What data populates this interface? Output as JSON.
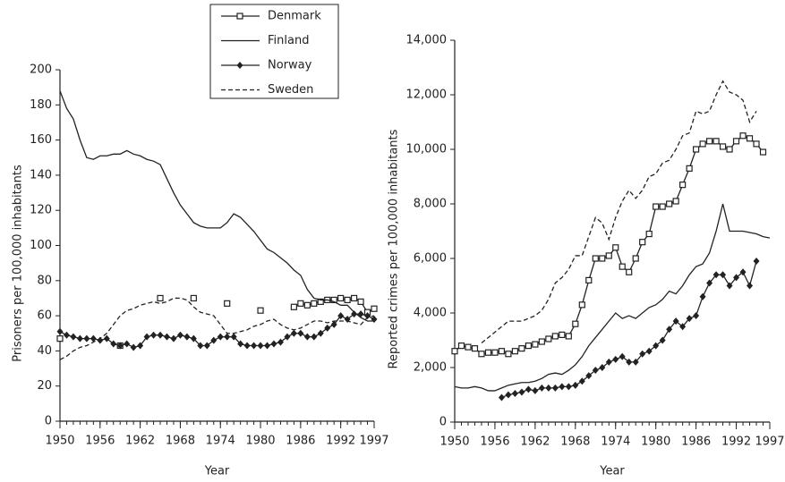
{
  "chart_data": [
    {
      "type": "line",
      "ylabel": "Prisoners per 100,000 inhabitants",
      "xlabel": "Year",
      "legend": "top",
      "x": [
        1950,
        1951,
        1952,
        1953,
        1954,
        1955,
        1956,
        1957,
        1958,
        1959,
        1960,
        1961,
        1962,
        1963,
        1964,
        1965,
        1966,
        1967,
        1968,
        1969,
        1970,
        1971,
        1972,
        1973,
        1974,
        1975,
        1976,
        1977,
        1978,
        1979,
        1980,
        1981,
        1982,
        1983,
        1984,
        1985,
        1986,
        1987,
        1988,
        1989,
        1990,
        1991,
        1992,
        1993,
        1994,
        1995,
        1996,
        1997
      ],
      "xlim": [
        1950,
        1997
      ],
      "xticks": [
        1950,
        1956,
        1962,
        1968,
        1974,
        1980,
        1986,
        1992,
        1997
      ],
      "ylim": [
        0,
        200
      ],
      "yticks": [
        0,
        20,
        40,
        60,
        80,
        100,
        120,
        140,
        160,
        180,
        200
      ],
      "series": [
        {
          "name": "Denmark",
          "color": "#222222",
          "marker": "square",
          "dash": false,
          "values": [
            47,
            null,
            null,
            null,
            null,
            null,
            null,
            null,
            null,
            43,
            null,
            null,
            null,
            null,
            null,
            70,
            null,
            null,
            null,
            null,
            70,
            null,
            null,
            null,
            null,
            67,
            null,
            null,
            null,
            null,
            63,
            null,
            null,
            null,
            null,
            65,
            67,
            66,
            67,
            68,
            69,
            69,
            70,
            69,
            70,
            68,
            62,
            64
          ]
        },
        {
          "name": "Finland",
          "color": "#222222",
          "marker": "none",
          "dash": false,
          "values": [
            188,
            178,
            172,
            160,
            150,
            149,
            151,
            151,
            152,
            152,
            154,
            152,
            151,
            149,
            148,
            146,
            138,
            130,
            123,
            118,
            113,
            111,
            110,
            110,
            110,
            113,
            118,
            116,
            112,
            108,
            103,
            98,
            96,
            93,
            90,
            86,
            83,
            75,
            70,
            69,
            69,
            68,
            66,
            66,
            62,
            59,
            57,
            57
          ]
        },
        {
          "name": "Norway",
          "color": "#222222",
          "marker": "diamond",
          "dash": false,
          "values": [
            51,
            49,
            48,
            47,
            47,
            47,
            46,
            47,
            44,
            43,
            44,
            42,
            43,
            48,
            49,
            49,
            48,
            47,
            49,
            48,
            47,
            43,
            43,
            46,
            48,
            48,
            48,
            44,
            43,
            43,
            43,
            43,
            44,
            45,
            48,
            50,
            50,
            48,
            48,
            50,
            53,
            55,
            60,
            58,
            61,
            61,
            60,
            58
          ]
        },
        {
          "name": "Sweden",
          "color": "#222222",
          "marker": "none",
          "dash": true,
          "values": [
            35,
            37,
            40,
            42,
            43,
            45,
            47,
            50,
            55,
            60,
            63,
            64,
            66,
            67,
            68,
            67,
            68,
            70,
            70,
            69,
            65,
            62,
            61,
            60,
            55,
            50,
            50,
            51,
            52,
            54,
            55,
            57,
            58,
            55,
            53,
            52,
            53,
            55,
            57,
            57,
            56,
            57,
            57,
            57,
            56,
            55,
            59,
            60
          ]
        }
      ]
    },
    {
      "type": "line",
      "ylabel": "Reported crimes per 100,000 inhabitants",
      "xlabel": "Year",
      "x": [
        1950,
        1951,
        1952,
        1953,
        1954,
        1955,
        1956,
        1957,
        1958,
        1959,
        1960,
        1961,
        1962,
        1963,
        1964,
        1965,
        1966,
        1967,
        1968,
        1969,
        1970,
        1971,
        1972,
        1973,
        1974,
        1975,
        1976,
        1977,
        1978,
        1979,
        1980,
        1981,
        1982,
        1983,
        1984,
        1985,
        1986,
        1987,
        1988,
        1989,
        1990,
        1991,
        1992,
        1993,
        1994,
        1995,
        1996,
        1997
      ],
      "xlim": [
        1950,
        1997
      ],
      "xticks": [
        1950,
        1956,
        1962,
        1968,
        1974,
        1980,
        1986,
        1992,
        1997
      ],
      "ylim": [
        0,
        14000
      ],
      "yticks": [
        0,
        {
          "value": 2000,
          "label": "2,000"
        },
        {
          "value": 4000,
          "label": "4,000"
        },
        {
          "value": 6000,
          "label": "6,000"
        },
        {
          "value": 8000,
          "label": "8,000"
        },
        {
          "value": 10000,
          "label": "10,000"
        },
        {
          "value": 12000,
          "label": "12,000"
        },
        {
          "value": 14000,
          "label": "14,000"
        }
      ],
      "series": [
        {
          "color": "#222222",
          "marker": "square",
          "dash": false,
          "values": [
            2600,
            2800,
            2750,
            2700,
            2500,
            2550,
            2550,
            2600,
            2500,
            2600,
            2700,
            2800,
            2850,
            2950,
            3050,
            3150,
            3200,
            3150,
            3600,
            4300,
            5200,
            6000,
            6000,
            6100,
            6400,
            5700,
            5500,
            6000,
            6600,
            6900,
            7900,
            7900,
            8000,
            8100,
            8700,
            9300,
            10000,
            10200,
            10300,
            10300,
            10100,
            10000,
            10300,
            10500,
            10400,
            10200,
            9900,
            null
          ]
        },
        {
          "color": "#222222",
          "marker": "none",
          "dash": false,
          "values": [
            1300,
            1250,
            1250,
            1300,
            1250,
            1150,
            1150,
            1250,
            1350,
            1400,
            1450,
            1450,
            1500,
            1600,
            1750,
            1800,
            1750,
            1900,
            2100,
            2400,
            2800,
            3100,
            3400,
            3700,
            4000,
            3800,
            3900,
            3800,
            4000,
            4200,
            4300,
            4500,
            4800,
            4700,
            5000,
            5400,
            5700,
            5800,
            6200,
            7000,
            8000,
            7000,
            7000,
            7000,
            6950,
            6900,
            6800,
            6750
          ]
        },
        {
          "color": "#222222",
          "marker": "diamond",
          "dash": false,
          "values": [
            null,
            null,
            null,
            null,
            null,
            null,
            null,
            900,
            1000,
            1050,
            1100,
            1200,
            1150,
            1250,
            1250,
            1250,
            1300,
            1300,
            1350,
            1500,
            1700,
            1900,
            2000,
            2200,
            2300,
            2400,
            2200,
            2200,
            2500,
            2600,
            2800,
            3000,
            3400,
            3700,
            3500,
            3800,
            3900,
            4600,
            5100,
            5400,
            5400,
            5000,
            5300,
            5500,
            5000,
            5900,
            null,
            null
          ]
        },
        {
          "color": "#222222",
          "marker": "none",
          "dash": true,
          "values": [
            null,
            null,
            null,
            null,
            2900,
            3100,
            3300,
            3500,
            3700,
            3700,
            3700,
            3800,
            3900,
            4100,
            4500,
            5100,
            5300,
            5600,
            6100,
            6100,
            6800,
            7500,
            7300,
            6700,
            7500,
            8100,
            8500,
            8200,
            8500,
            9000,
            9100,
            9500,
            9600,
            10000,
            10500,
            10600,
            11400,
            11300,
            11400,
            12000,
            12500,
            12100,
            12000,
            11800,
            11000,
            11400,
            null,
            null
          ]
        }
      ]
    }
  ]
}
